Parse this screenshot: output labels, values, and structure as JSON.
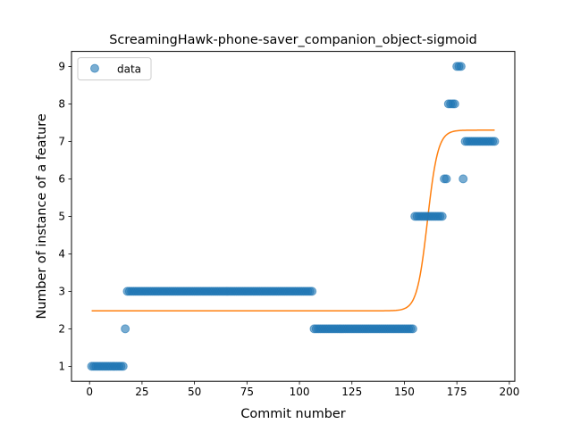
{
  "chart_data": {
    "type": "scatter",
    "title": "ScreamingHawk-phone-saver_companion_object-sigmoid",
    "xlabel": "Commit number",
    "ylabel": "Number of instance of a feature",
    "xlim": [
      -8.6,
      202.6
    ],
    "ylim": [
      0.6,
      9.4
    ],
    "xticks": [
      0,
      25,
      50,
      75,
      100,
      125,
      150,
      175,
      200
    ],
    "yticks": [
      1,
      2,
      3,
      4,
      5,
      6,
      7,
      8,
      9
    ],
    "grid": false,
    "legend": {
      "placement": "top-left",
      "entries": [
        "data"
      ]
    },
    "colors": {
      "data": "#1f77b4",
      "fit": "#ff7f0e"
    },
    "series": [
      {
        "name": "data",
        "kind": "points",
        "segments": [
          {
            "x_from": 1,
            "x_to": 16,
            "y": 1
          },
          {
            "x_from": 17,
            "x_to": 17,
            "y": 2
          },
          {
            "x_from": 18,
            "x_to": 106,
            "y": 3
          },
          {
            "x_from": 107,
            "x_to": 154,
            "y": 2
          },
          {
            "x_from": 155,
            "x_to": 168,
            "y": 5
          },
          {
            "x_from": 169,
            "x_to": 170,
            "y": 6
          },
          {
            "x_from": 171,
            "x_to": 174,
            "y": 8
          },
          {
            "x_from": 175,
            "x_to": 177,
            "y": 9
          },
          {
            "x_from": 178,
            "x_to": 178,
            "y": 6
          },
          {
            "x_from": 179,
            "x_to": 193,
            "y": 7
          }
        ]
      },
      {
        "kind": "sigmoid-fit",
        "x_range": [
          1,
          193
        ],
        "y_min": 2.48,
        "y_max": 7.3,
        "midpoint": 161,
        "steepness": 0.4
      }
    ]
  }
}
